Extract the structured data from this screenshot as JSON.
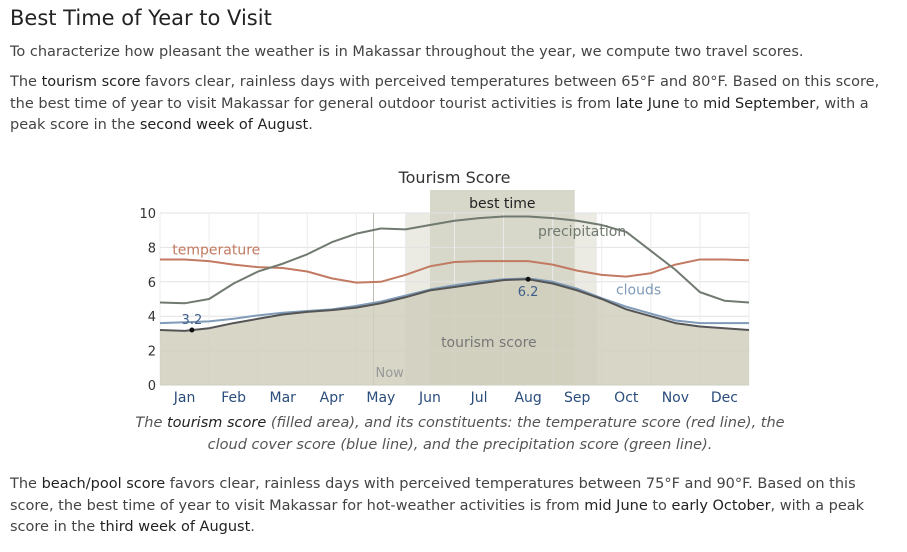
{
  "heading": "Best Time of Year to Visit",
  "intro": "To characterize how pleasant the weather is in Makassar throughout the year, we compute two travel scores.",
  "tourism_paragraph": {
    "t1": "The ",
    "k1": "tourism score",
    "t2": " favors clear, rainless days with perceived temperatures between 65°F and 80°F. Based on this score, the best time of year to visit Makassar for general outdoor tourist activities is from ",
    "k2": "late June",
    "t3": " to ",
    "k3": "mid September",
    "t4": ", with a peak score in the ",
    "k4": "second week of August",
    "t5": "."
  },
  "caption": {
    "t1": "The ",
    "k1": "tourism score",
    "t2": " (filled area), and its constituents: the temperature score (red line), the cloud cover score (blue line), and the precipitation score (green line)."
  },
  "beach_paragraph": {
    "t1": "The ",
    "k1": "beach/pool score",
    "t2": " favors clear, rainless days with perceived temperatures between 75°F and 90°F. Based on this score, the best time of year to visit Makassar for hot-weather activities is from ",
    "k2": "mid June",
    "t3": " to ",
    "k3": "early October",
    "t4": ", with a peak score in the ",
    "k4": "third week of August",
    "t5": "."
  },
  "chart_data": {
    "type": "area",
    "title": "Tourism Score",
    "ylim": [
      0,
      10
    ],
    "xlim": [
      0,
      12
    ],
    "yticks": [
      0,
      2,
      4,
      6,
      8,
      10
    ],
    "months": [
      "Jan",
      "Feb",
      "Mar",
      "Apr",
      "May",
      "Jun",
      "Jul",
      "Aug",
      "Sep",
      "Oct",
      "Nov",
      "Dec"
    ],
    "grid": true,
    "best_time": {
      "label": "best time",
      "start": 5.5,
      "end": 8.45
    },
    "beach_band": {
      "start": 5.0,
      "end": 8.9
    },
    "now": {
      "label": "Now",
      "x": 4.35
    },
    "series": [
      {
        "name": "tourism score",
        "kind": "area",
        "color": "#d0cfbd",
        "line": "#555555",
        "x": [
          0,
          0.5,
          1,
          1.5,
          2,
          2.5,
          3,
          3.5,
          4,
          4.5,
          5,
          5.5,
          6,
          6.5,
          7,
          7.5,
          8,
          8.5,
          9,
          9.5,
          10,
          10.5,
          11,
          11.5,
          12
        ],
        "y": [
          3.2,
          3.15,
          3.3,
          3.6,
          3.85,
          4.1,
          4.25,
          4.35,
          4.5,
          4.75,
          5.1,
          5.5,
          5.7,
          5.9,
          6.1,
          6.15,
          5.9,
          5.5,
          5.0,
          4.4,
          4.0,
          3.6,
          3.4,
          3.3,
          3.2
        ]
      },
      {
        "name": "temperature",
        "kind": "line",
        "color": "#c27a62",
        "x": [
          0,
          0.5,
          1,
          1.5,
          2,
          2.5,
          3,
          3.5,
          4,
          4.5,
          5,
          5.5,
          6,
          6.5,
          7,
          7.5,
          8,
          8.5,
          9,
          9.5,
          10,
          10.5,
          11,
          11.5,
          12
        ],
        "y": [
          7.3,
          7.3,
          7.2,
          7.0,
          6.85,
          6.8,
          6.6,
          6.2,
          5.95,
          6.0,
          6.4,
          6.9,
          7.15,
          7.2,
          7.2,
          7.2,
          7.0,
          6.65,
          6.4,
          6.3,
          6.5,
          7.0,
          7.3,
          7.3,
          7.25
        ]
      },
      {
        "name": "clouds",
        "kind": "line",
        "color": "#7f9bb8",
        "x": [
          0,
          0.5,
          1,
          1.5,
          2,
          2.5,
          3,
          3.5,
          4,
          4.5,
          5,
          5.5,
          6,
          6.5,
          7,
          7.5,
          8,
          8.5,
          9,
          9.5,
          10,
          10.5,
          11,
          11.5,
          12
        ],
        "y": [
          3.6,
          3.65,
          3.7,
          3.85,
          4.05,
          4.2,
          4.3,
          4.4,
          4.6,
          4.85,
          5.2,
          5.55,
          5.8,
          6.0,
          6.15,
          6.2,
          6.0,
          5.6,
          5.05,
          4.55,
          4.15,
          3.75,
          3.6,
          3.6,
          3.6
        ]
      },
      {
        "name": "precipitation",
        "kind": "line",
        "color": "#707a70",
        "x": [
          0,
          0.5,
          1,
          1.5,
          2,
          2.5,
          3,
          3.5,
          4,
          4.5,
          5,
          5.5,
          6,
          6.5,
          7,
          7.5,
          8,
          8.5,
          9,
          9.5,
          10,
          10.5,
          11,
          11.5,
          12
        ],
        "y": [
          4.8,
          4.75,
          5.0,
          5.9,
          6.6,
          7.05,
          7.6,
          8.3,
          8.8,
          9.1,
          9.05,
          9.3,
          9.55,
          9.7,
          9.8,
          9.8,
          9.7,
          9.55,
          9.3,
          8.9,
          7.8,
          6.7,
          5.4,
          4.9,
          4.8
        ]
      }
    ],
    "annotations": [
      {
        "text": "3.2",
        "x": 0.65,
        "y": 3.2,
        "color": "#3f5f8a"
      },
      {
        "text": "6.2",
        "x": 7.5,
        "y": 6.15,
        "color": "#3f5f8a"
      }
    ]
  }
}
